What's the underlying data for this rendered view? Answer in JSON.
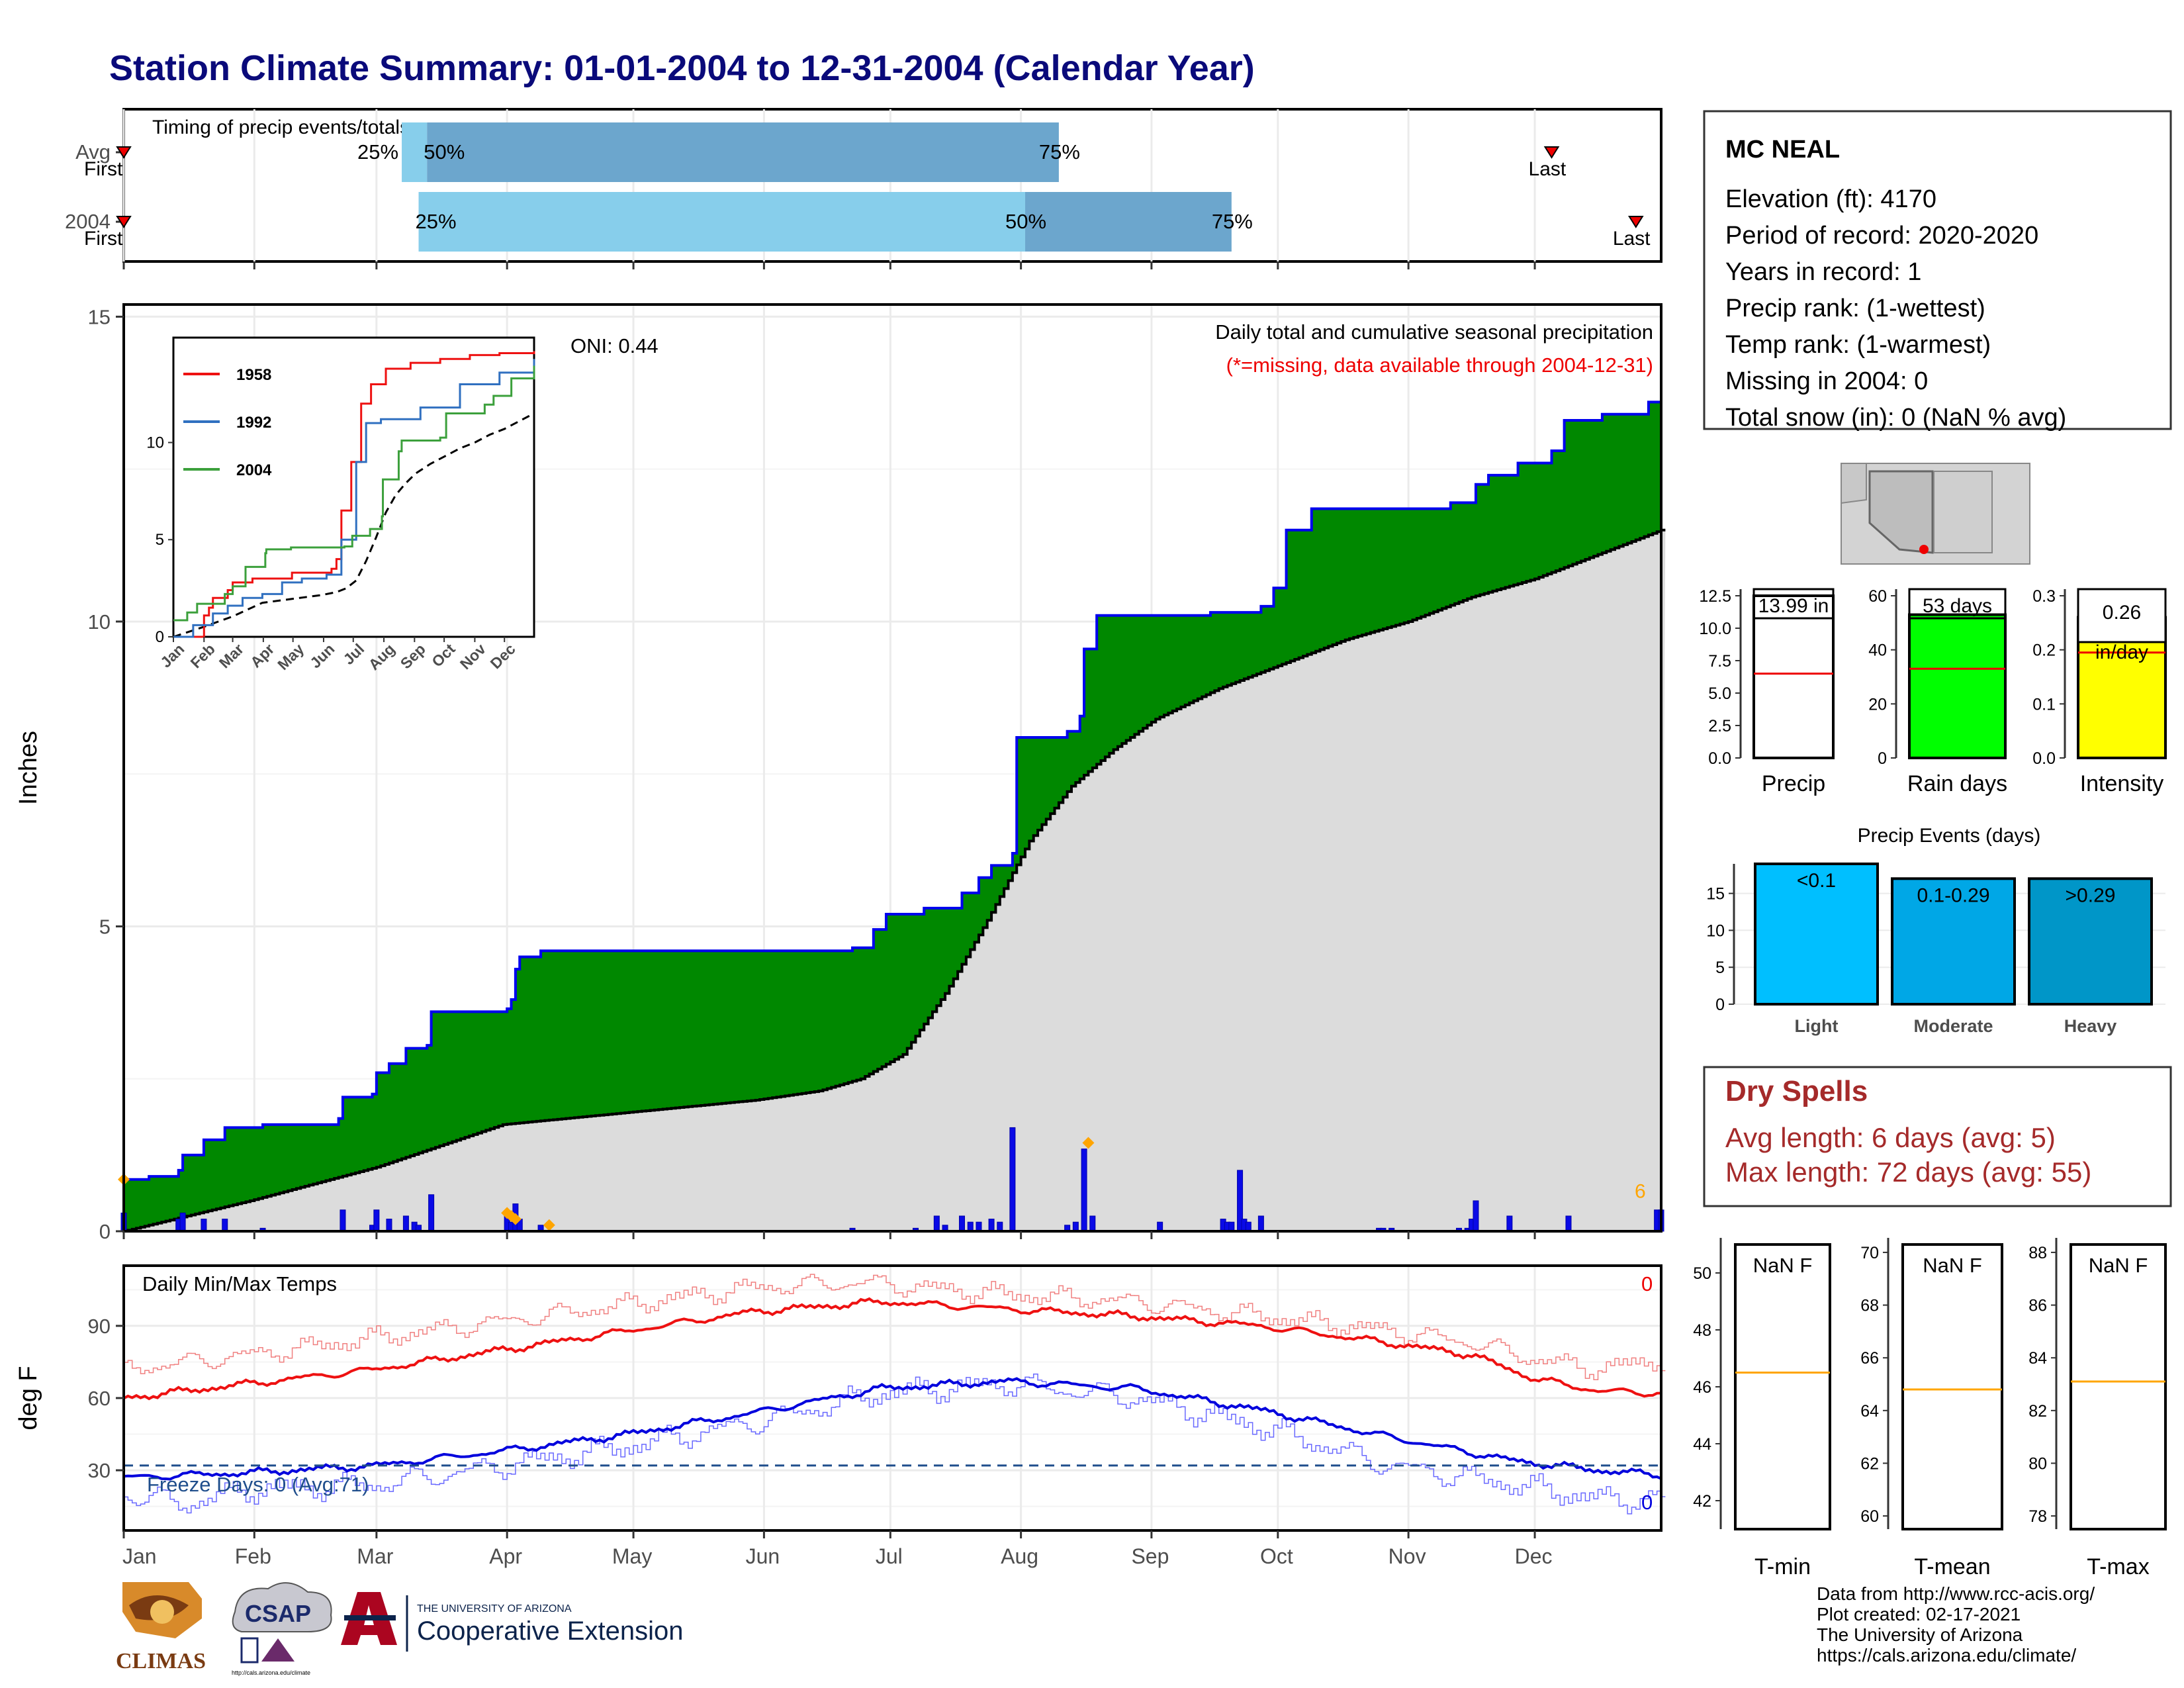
{
  "title": "Station Climate Summary: 01-01-2004 to 12-31-2004 (Calendar Year)",
  "colors": {
    "title": "#0a0a7a",
    "cum_fill": "#008800",
    "cum_line": "#0000ee",
    "avg_fill": "#dcdcdc",
    "tmax": "#ee1111",
    "tmin": "#0000dd",
    "bar_light": "#00bfff",
    "bar_mod": "#00a7e6",
    "bar_heavy": "#0096c8",
    "dry_text": "#a52a2a",
    "rain_box": "#00ff00",
    "intensity_box": "#ffff00"
  },
  "timing_panel": {
    "title": "Timing of precip events/totals",
    "rows": [
      {
        "label": "Avg",
        "first_label": "First",
        "last_label": "Last",
        "p25": "25%",
        "p50": "50%",
        "p75": "75%",
        "first_doy": 0,
        "p25_doy": 66,
        "p50_doy": 72,
        "p75_doy": 222,
        "last_doy": 339
      },
      {
        "label": "2004",
        "first_label": "First",
        "last_label": "Last",
        "p25": "25%",
        "p50": "50%",
        "p75": "75%",
        "first_doy": 0,
        "p25_doy": 70,
        "p50_doy": 214,
        "p75_doy": 263,
        "last_doy": 359
      }
    ]
  },
  "precip_panel": {
    "header": "Daily total and cumulative seasonal precipitation",
    "subheader": "(*=missing, data available through 2004-12-31)",
    "oni": "ONI: 0.44",
    "ylabel": "Inches",
    "yticks": [
      "0",
      "5",
      "10",
      "15"
    ],
    "ylim": [
      0,
      15.2
    ],
    "snow_count": "6",
    "cumulative_2004": [
      [
        0,
        0.85
      ],
      [
        6,
        0.9
      ],
      [
        13,
        1.0
      ],
      [
        14,
        1.25
      ],
      [
        19,
        1.5
      ],
      [
        24,
        1.7
      ],
      [
        33,
        1.75
      ],
      [
        47,
        1.75
      ],
      [
        51,
        1.85
      ],
      [
        52,
        2.2
      ],
      [
        59,
        2.25
      ],
      [
        60,
        2.6
      ],
      [
        63,
        2.75
      ],
      [
        67,
        3.0
      ],
      [
        72,
        3.05
      ],
      [
        73,
        3.6
      ],
      [
        82,
        3.6
      ],
      [
        91,
        3.65
      ],
      [
        92,
        3.8
      ],
      [
        93,
        4.3
      ],
      [
        94,
        4.5
      ],
      [
        99,
        4.6
      ],
      [
        119,
        4.6
      ],
      [
        144,
        4.6
      ],
      [
        160,
        4.6
      ],
      [
        173,
        4.65
      ],
      [
        178,
        4.95
      ],
      [
        181,
        5.2
      ],
      [
        190,
        5.3
      ],
      [
        199,
        5.55
      ],
      [
        203,
        5.8
      ],
      [
        206,
        6.0
      ],
      [
        211,
        6.2
      ],
      [
        212,
        8.1
      ],
      [
        224,
        8.2
      ],
      [
        227,
        8.45
      ],
      [
        228,
        9.55
      ],
      [
        231,
        10.1
      ],
      [
        252,
        10.1
      ],
      [
        258,
        10.15
      ],
      [
        270,
        10.25
      ],
      [
        273,
        10.55
      ],
      [
        276,
        11.5
      ],
      [
        282,
        11.85
      ],
      [
        315,
        11.95
      ],
      [
        321,
        12.25
      ],
      [
        324,
        12.4
      ],
      [
        331,
        12.6
      ],
      [
        339,
        12.8
      ],
      [
        342,
        13.3
      ],
      [
        351,
        13.4
      ],
      [
        362,
        13.6
      ],
      [
        365,
        13.95
      ]
    ],
    "cumulative_avg": [
      [
        0,
        0.0
      ],
      [
        30,
        0.5
      ],
      [
        60,
        1.05
      ],
      [
        90,
        1.75
      ],
      [
        120,
        1.95
      ],
      [
        150,
        2.15
      ],
      [
        165,
        2.3
      ],
      [
        175,
        2.5
      ],
      [
        185,
        2.9
      ],
      [
        195,
        3.9
      ],
      [
        205,
        5.1
      ],
      [
        215,
        6.4
      ],
      [
        225,
        7.3
      ],
      [
        235,
        7.9
      ],
      [
        245,
        8.4
      ],
      [
        260,
        8.9
      ],
      [
        275,
        9.3
      ],
      [
        290,
        9.7
      ],
      [
        305,
        10.0
      ],
      [
        320,
        10.4
      ],
      [
        335,
        10.7
      ],
      [
        350,
        11.1
      ],
      [
        365,
        11.5
      ]
    ],
    "daily_bars": [
      [
        0,
        0.3
      ],
      [
        13,
        0.2
      ],
      [
        14,
        0.3
      ],
      [
        19,
        0.2
      ],
      [
        24,
        0.2
      ],
      [
        33,
        0.05
      ],
      [
        52,
        0.35
      ],
      [
        59,
        0.1
      ],
      [
        60,
        0.35
      ],
      [
        63,
        0.2
      ],
      [
        67,
        0.25
      ],
      [
        69,
        0.15
      ],
      [
        70,
        0.1
      ],
      [
        73,
        0.6
      ],
      [
        91,
        0.3
      ],
      [
        92,
        0.15
      ],
      [
        93,
        0.45
      ],
      [
        94,
        0.2
      ],
      [
        99,
        0.1
      ],
      [
        173,
        0.05
      ],
      [
        188,
        0.05
      ],
      [
        193,
        0.25
      ],
      [
        195,
        0.1
      ],
      [
        199,
        0.25
      ],
      [
        201,
        0.15
      ],
      [
        203,
        0.15
      ],
      [
        206,
        0.2
      ],
      [
        208,
        0.15
      ],
      [
        211,
        1.7
      ],
      [
        224,
        0.1
      ],
      [
        226,
        0.15
      ],
      [
        228,
        1.35
      ],
      [
        230,
        0.25
      ],
      [
        246,
        0.15
      ],
      [
        261,
        0.2
      ],
      [
        262,
        0.15
      ],
      [
        263,
        0.15
      ],
      [
        265,
        1.0
      ],
      [
        266,
        0.2
      ],
      [
        267,
        0.15
      ],
      [
        270,
        0.25
      ],
      [
        298,
        0.05
      ],
      [
        299,
        0.05
      ],
      [
        301,
        0.05
      ],
      [
        317,
        0.05
      ],
      [
        319,
        0.05
      ],
      [
        320,
        0.2
      ],
      [
        321,
        0.5
      ],
      [
        329,
        0.25
      ],
      [
        343,
        0.25
      ],
      [
        364,
        0.35
      ],
      [
        365,
        0.35
      ]
    ],
    "missing_markers": [
      [
        0,
        0.85
      ],
      [
        91,
        0.3
      ],
      [
        92,
        0.25
      ],
      [
        93,
        0.2
      ],
      [
        101,
        0.1
      ],
      [
        229,
        1.45
      ]
    ]
  },
  "inset": {
    "series": [
      {
        "name": "1958",
        "color": "#ee1111",
        "points": [
          [
            0,
            0
          ],
          [
            30,
            0
          ],
          [
            31,
            1.1
          ],
          [
            36,
            1.5
          ],
          [
            40,
            2.0
          ],
          [
            55,
            2.4
          ],
          [
            60,
            2.8
          ],
          [
            80,
            3.0
          ],
          [
            120,
            3.3
          ],
          [
            160,
            3.5
          ],
          [
            165,
            4.0
          ],
          [
            170,
            6.5
          ],
          [
            180,
            9.0
          ],
          [
            190,
            12.0
          ],
          [
            200,
            13.0
          ],
          [
            215,
            13.8
          ],
          [
            240,
            14.1
          ],
          [
            270,
            14.3
          ],
          [
            300,
            14.5
          ],
          [
            330,
            14.6
          ],
          [
            365,
            14.7
          ]
        ]
      },
      {
        "name": "1992",
        "color": "#3070c0",
        "points": [
          [
            0,
            0
          ],
          [
            20,
            0.6
          ],
          [
            40,
            1.2
          ],
          [
            55,
            1.6
          ],
          [
            70,
            2.0
          ],
          [
            90,
            2.2
          ],
          [
            110,
            2.8
          ],
          [
            130,
            3.0
          ],
          [
            155,
            3.2
          ],
          [
            170,
            5.0
          ],
          [
            185,
            9.0
          ],
          [
            195,
            11.0
          ],
          [
            210,
            11.2
          ],
          [
            250,
            11.8
          ],
          [
            290,
            13.0
          ],
          [
            330,
            13.6
          ],
          [
            365,
            14.3
          ]
        ]
      },
      {
        "name": "2004",
        "color": "#3ca03c",
        "points": [
          [
            0,
            0.85
          ],
          [
            14,
            1.25
          ],
          [
            24,
            1.7
          ],
          [
            52,
            2.2
          ],
          [
            60,
            2.6
          ],
          [
            73,
            3.6
          ],
          [
            93,
            4.3
          ],
          [
            94,
            4.5
          ],
          [
            119,
            4.6
          ],
          [
            173,
            4.65
          ],
          [
            181,
            5.2
          ],
          [
            199,
            5.55
          ],
          [
            211,
            6.2
          ],
          [
            212,
            8.1
          ],
          [
            228,
            9.55
          ],
          [
            231,
            10.1
          ],
          [
            270,
            10.25
          ],
          [
            276,
            11.5
          ],
          [
            315,
            11.95
          ],
          [
            324,
            12.4
          ],
          [
            342,
            13.3
          ],
          [
            365,
            13.95
          ]
        ]
      }
    ],
    "avg_points": [
      [
        0,
        0
      ],
      [
        30,
        0.5
      ],
      [
        60,
        1.05
      ],
      [
        90,
        1.75
      ],
      [
        120,
        1.95
      ],
      [
        150,
        2.15
      ],
      [
        165,
        2.3
      ],
      [
        175,
        2.5
      ],
      [
        185,
        2.9
      ],
      [
        195,
        3.9
      ],
      [
        205,
        5.1
      ],
      [
        215,
        6.4
      ],
      [
        225,
        7.3
      ],
      [
        235,
        7.9
      ],
      [
        245,
        8.4
      ],
      [
        260,
        8.9
      ],
      [
        275,
        9.3
      ],
      [
        290,
        9.7
      ],
      [
        305,
        10.0
      ],
      [
        320,
        10.4
      ],
      [
        335,
        10.7
      ],
      [
        350,
        11.1
      ],
      [
        365,
        11.5
      ]
    ],
    "yticks": [
      "0",
      "5",
      "10"
    ],
    "months": [
      "Jan",
      "Feb",
      "Mar",
      "Apr",
      "May",
      "Jun",
      "Jul",
      "Aug",
      "Sep",
      "Oct",
      "Nov",
      "Dec"
    ]
  },
  "temp_panel": {
    "title": "Daily Min/Max Temps",
    "ylabel": "deg F",
    "yticks": [
      "30",
      "60",
      "90"
    ],
    "tmax_count": "0",
    "tmin_count": "0",
    "freeze_label": "Freeze Days: 0 (Avg:71)",
    "freeze_line": 32,
    "tmax_avg_knots": [
      [
        0,
        60
      ],
      [
        30,
        66
      ],
      [
        60,
        72
      ],
      [
        90,
        80
      ],
      [
        120,
        88
      ],
      [
        150,
        96
      ],
      [
        180,
        100
      ],
      [
        210,
        97
      ],
      [
        240,
        94
      ],
      [
        270,
        90
      ],
      [
        300,
        83
      ],
      [
        320,
        78
      ],
      [
        335,
        68
      ],
      [
        350,
        63
      ],
      [
        365,
        62
      ]
    ],
    "tmax_2004_knots": [
      [
        0,
        72
      ],
      [
        30,
        78
      ],
      [
        60,
        85
      ],
      [
        90,
        92
      ],
      [
        120,
        99
      ],
      [
        150,
        106
      ],
      [
        175,
        108
      ],
      [
        210,
        103
      ],
      [
        240,
        100
      ],
      [
        270,
        94
      ],
      [
        300,
        88
      ],
      [
        320,
        83
      ],
      [
        335,
        76
      ],
      [
        350,
        72
      ],
      [
        365,
        76
      ]
    ],
    "tmin_avg_knots": [
      [
        0,
        27
      ],
      [
        30,
        29
      ],
      [
        60,
        32
      ],
      [
        90,
        38
      ],
      [
        120,
        45
      ],
      [
        150,
        54
      ],
      [
        180,
        64
      ],
      [
        210,
        67
      ],
      [
        240,
        64
      ],
      [
        270,
        55
      ],
      [
        300,
        44
      ],
      [
        330,
        34
      ],
      [
        350,
        30
      ],
      [
        365,
        28
      ]
    ],
    "tmin_2004_knots": [
      [
        0,
        20
      ],
      [
        15,
        16
      ],
      [
        30,
        22
      ],
      [
        60,
        24
      ],
      [
        90,
        32
      ],
      [
        120,
        40
      ],
      [
        150,
        50
      ],
      [
        180,
        62
      ],
      [
        210,
        66
      ],
      [
        240,
        60
      ],
      [
        270,
        48
      ],
      [
        300,
        32
      ],
      [
        330,
        24
      ],
      [
        350,
        18
      ],
      [
        365,
        18
      ]
    ]
  },
  "months": [
    "Jan",
    "Feb",
    "Mar",
    "Apr",
    "May",
    "Jun",
    "Jul",
    "Aug",
    "Sep",
    "Oct",
    "Nov",
    "Dec"
  ],
  "station": {
    "name": "MC NEAL",
    "elevation": "Elevation (ft): 4170",
    "period": "Period of record: 2020-2020",
    "years": "Years in record: 1",
    "precip_rank": "Precip rank:  (1-wettest)",
    "temp_rank": "Temp rank:  (1-warmest)",
    "missing": "Missing in 2004: 0",
    "snow": "Total snow (in): 0 (NaN % avg)"
  },
  "summary_bars": {
    "precip": {
      "label": "Precip",
      "value_label": "13.99 in",
      "value": 13.99,
      "avg": 6.5,
      "yticks": [
        "0.0",
        "2.5",
        "5.0",
        "7.5",
        "10.0",
        "12.5"
      ],
      "ymax": 12.5
    },
    "rain_days": {
      "label": "Rain days",
      "value_label": "53 days",
      "value": 53,
      "avg": 33,
      "yticks": [
        "0",
        "20",
        "40",
        "60"
      ],
      "ymax": 60
    },
    "intensity": {
      "label": "Intensity",
      "value_label": "0.26",
      "unit_label": "in/day",
      "value": 0.26,
      "avg": 0.195,
      "yticks": [
        "0.0",
        "0.1",
        "0.2",
        "0.3"
      ],
      "ymax": 0.3
    }
  },
  "precip_events": {
    "title": "Precip Events (days)",
    "yticks": [
      "0",
      "5",
      "10",
      "15"
    ],
    "ymax": 19,
    "bars": [
      {
        "category": "Light",
        "label": "<0.1",
        "value": 19
      },
      {
        "category": "Moderate",
        "label": "0.1-0.29",
        "value": 17
      },
      {
        "category": "Heavy",
        "label": ">0.29",
        "value": 17
      }
    ]
  },
  "dry_spells": {
    "title": "Dry Spells",
    "avg_length": "Avg length: 6 days (avg: 5)",
    "max_length": "Max length: 72 days (avg: 55)"
  },
  "temp_summary": {
    "tmin": {
      "label": "T-min",
      "value_label": "NaN F",
      "yticks": [
        "42",
        "44",
        "46",
        "48",
        "50"
      ],
      "ymin": 41,
      "ymax": 51,
      "avg": 46.5
    },
    "tmean": {
      "label": "T-mean",
      "value_label": "NaN F",
      "yticks": [
        "60",
        "62",
        "64",
        "66",
        "68",
        "70"
      ],
      "ymin": 59.5,
      "ymax": 70.3,
      "avg": 64.8
    },
    "tmax": {
      "label": "T-max",
      "value_label": "NaN F",
      "yticks": [
        "78",
        "80",
        "82",
        "84",
        "86",
        "88"
      ],
      "ymin": 77.5,
      "ymax": 88.3,
      "avg": 83.1
    }
  },
  "logos": {
    "climas": "CLIMAS",
    "csap": "CSAP",
    "csap_url": "http://cals.arizona.edu/climate",
    "ua_small": "THE UNIVERSITY OF ARIZONA",
    "ua_large": "Cooperative Extension"
  },
  "credits": {
    "line1": "Data from http://www.rcc-acis.org/",
    "line2": "Plot created: 02-17-2021",
    "line3": "The University of Arizona",
    "line4": "https://cals.arizona.edu/climate/"
  }
}
